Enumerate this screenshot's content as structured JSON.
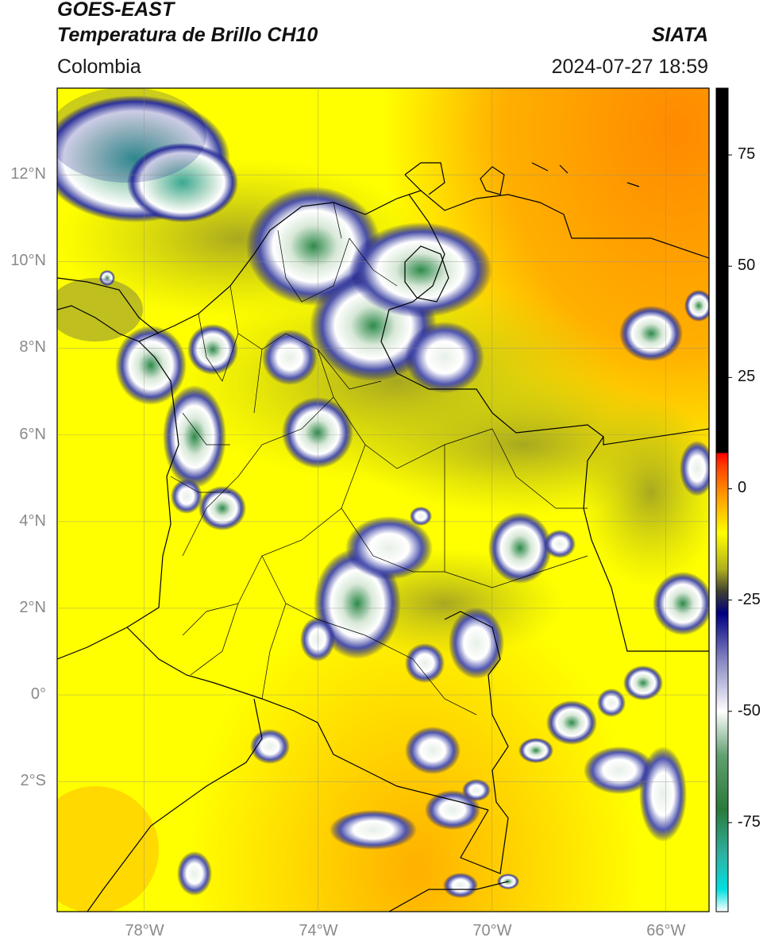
{
  "header": {
    "satellite": "GOES-EAST",
    "product": "Temperatura de Brillo CH10",
    "organization": "SIATA",
    "region": "Colombia",
    "timestamp": "2024-07-27 18:59"
  },
  "map": {
    "lon_range": [
      -80,
      -65
    ],
    "lat_range": [
      -5,
      14
    ],
    "lat_ticks": [
      {
        "value": 12,
        "label": "12°N"
      },
      {
        "value": 10,
        "label": "10°N"
      },
      {
        "value": 8,
        "label": "8°N"
      },
      {
        "value": 6,
        "label": "6°N"
      },
      {
        "value": 4,
        "label": "4°N"
      },
      {
        "value": 2,
        "label": "2°N"
      },
      {
        "value": 0,
        "label": "0°"
      },
      {
        "value": -2,
        "label": "2°S"
      }
    ],
    "lon_ticks": [
      {
        "value": -78,
        "label": "78°W"
      },
      {
        "value": -74,
        "label": "74°W"
      },
      {
        "value": -70,
        "label": "70°W"
      },
      {
        "value": -66,
        "label": "66°W"
      }
    ],
    "gridlines": true
  },
  "colorbar": {
    "range": [
      -95,
      90
    ],
    "ticks": [
      {
        "value": 75,
        "label": "75"
      },
      {
        "value": 50,
        "label": "50"
      },
      {
        "value": 25,
        "label": "25"
      },
      {
        "value": 0,
        "label": "0"
      },
      {
        "value": -25,
        "label": "-25"
      },
      {
        "value": -50,
        "label": "-50"
      },
      {
        "value": -75,
        "label": "-75"
      }
    ],
    "stops": [
      {
        "value": -95,
        "color": "#ffffff"
      },
      {
        "value": -90,
        "color": "#00e0e0"
      },
      {
        "value": -82,
        "color": "#30b0a0"
      },
      {
        "value": -72,
        "color": "#2a7a3a"
      },
      {
        "value": -60,
        "color": "#60a070"
      },
      {
        "value": -50,
        "color": "#ffffff"
      },
      {
        "value": -38,
        "color": "#8080c0"
      },
      {
        "value": -28,
        "color": "#000080"
      },
      {
        "value": -23,
        "color": "#404030"
      },
      {
        "value": -18,
        "color": "#b0b020"
      },
      {
        "value": -10,
        "color": "#ffff00"
      },
      {
        "value": -2,
        "color": "#ffa000"
      },
      {
        "value": 5,
        "color": "#ff4000"
      },
      {
        "value": 8,
        "color": "#ff0000"
      },
      {
        "value": 8.01,
        "color": "#000000"
      },
      {
        "value": 90,
        "color": "#000000"
      }
    ]
  }
}
